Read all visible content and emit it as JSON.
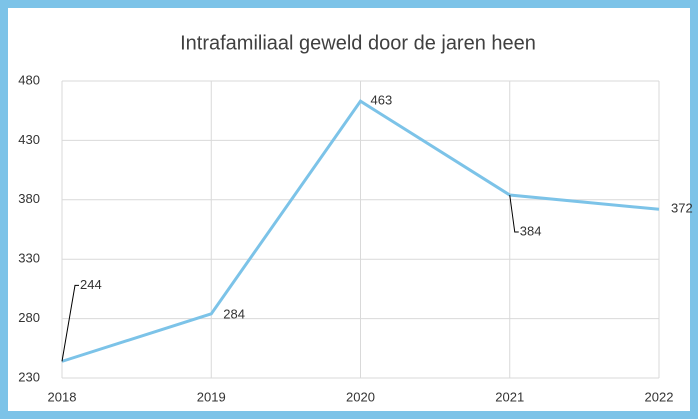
{
  "chart_data": {
    "type": "line",
    "title": "Intrafamiliaal geweld door de jaren heen",
    "categories": [
      "2018",
      "2019",
      "2020",
      "2021",
      "2022"
    ],
    "series": [
      {
        "name": "Intrafamiliaal geweld",
        "color": "#7cc3e8",
        "values": [
          244,
          284,
          463,
          384,
          372
        ]
      }
    ],
    "ylim": [
      230,
      480
    ],
    "yticks": [
      230,
      280,
      330,
      380,
      430,
      480
    ],
    "grid": true
  }
}
